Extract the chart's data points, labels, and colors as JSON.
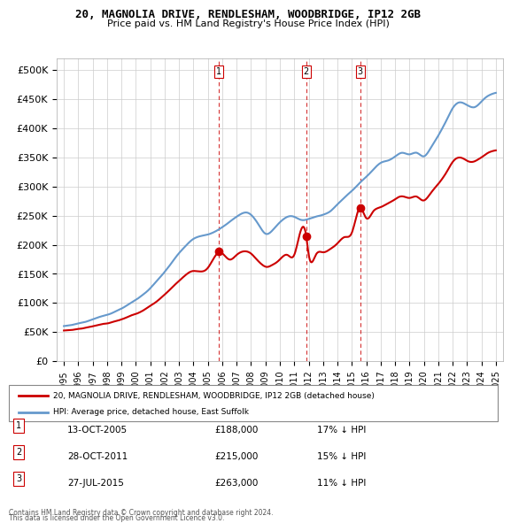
{
  "title": "20, MAGNOLIA DRIVE, RENDLESHAM, WOODBRIDGE, IP12 2GB",
  "subtitle": "Price paid vs. HM Land Registry's House Price Index (HPI)",
  "legend_property": "20, MAGNOLIA DRIVE, RENDLESHAM, WOODBRIDGE, IP12 2GB (detached house)",
  "legend_hpi": "HPI: Average price, detached house, East Suffolk",
  "footer1": "Contains HM Land Registry data © Crown copyright and database right 2024.",
  "footer2": "This data is licensed under the Open Government Licence v3.0.",
  "sales": [
    {
      "label": "1",
      "date": "2005-10-13",
      "price": 188000,
      "hpi_diff": "17% ↓ HPI"
    },
    {
      "label": "2",
      "date": "2011-10-28",
      "price": 215000,
      "hpi_diff": "15% ↓ HPI"
    },
    {
      "label": "3",
      "date": "2015-07-27",
      "price": 263000,
      "hpi_diff": "11% ↓ HPI"
    }
  ],
  "sales_display": [
    {
      "label": "1",
      "date_str": "13-OCT-2005",
      "price_str": "£188,000",
      "hpi_diff": "17% ↓ HPI"
    },
    {
      "label": "2",
      "date_str": "28-OCT-2011",
      "price_str": "£215,000",
      "hpi_diff": "15% ↓ HPI"
    },
    {
      "label": "3",
      "date_str": "27-JUL-2015",
      "price_str": "£263,000",
      "hpi_diff": "11% ↓ HPI"
    }
  ],
  "ylim": [
    0,
    520000
  ],
  "yticks": [
    0,
    50000,
    100000,
    150000,
    200000,
    250000,
    300000,
    350000,
    400000,
    450000,
    500000
  ],
  "property_color": "#cc0000",
  "hpi_color": "#6699cc",
  "vline_color": "#cc0000",
  "sale_marker_color": "#cc0000",
  "background_color": "#ffffff",
  "grid_color": "#cccccc"
}
